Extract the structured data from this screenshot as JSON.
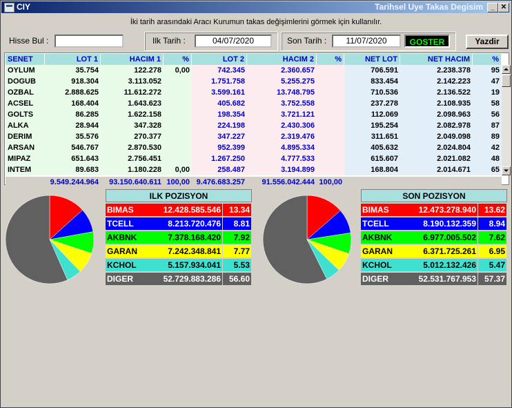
{
  "window": {
    "title": "CIY",
    "title_right": "Tarihsel Uye Takas Degisim"
  },
  "info_text": "İki tarih arasındaki  Aracı Kurumun takas değişimlerini görmek için kullanılır.",
  "form": {
    "hisse_label": "Hisse Bul :",
    "hisse_value": "",
    "ilk_label": "Ilk Tarih :",
    "ilk_value": "04/07/2020",
    "son_label": "Son Tarih :",
    "son_value": "11/07/2020",
    "goster_label": "GOSTER",
    "yazdir_label": "Yazdir"
  },
  "table": {
    "headers": [
      "SENET",
      "LOT 1",
      "HACIM 1",
      "%",
      "LOT 2",
      "HACIM 2",
      "%",
      "NET LOT",
      "NET HACIM",
      "%"
    ],
    "rows": [
      [
        "OYLUM",
        "35.754",
        "122.278",
        "0,00",
        "742.345",
        "2.360.657",
        "",
        "706.591",
        "2.238.378",
        "95"
      ],
      [
        "DOGUB",
        "918.304",
        "3.113.052",
        "",
        "1.751.758",
        "5.255.275",
        "",
        "833.454",
        "2.142.223",
        "47"
      ],
      [
        "OZBAL",
        "2.888.625",
        "11.612.272",
        "",
        "3.599.161",
        "13.748.795",
        "",
        "710.536",
        "2.136.522",
        "19"
      ],
      [
        "ACSEL",
        "168.404",
        "1.643.623",
        "",
        "405.682",
        "3.752.558",
        "",
        "237.278",
        "2.108.935",
        "58"
      ],
      [
        "GOLTS",
        "86.285",
        "1.622.158",
        "",
        "198.354",
        "3.721.121",
        "",
        "112.069",
        "2.098.963",
        "56"
      ],
      [
        "ALKA",
        "28.944",
        "347.328",
        "",
        "224.198",
        "2.430.306",
        "",
        "195.254",
        "2.082.978",
        "87"
      ],
      [
        "DERIM",
        "35.576",
        "270.377",
        "",
        "347.227",
        "2.319.476",
        "",
        "311.651",
        "2.049.098",
        "89"
      ],
      [
        "ARSAN",
        "546.767",
        "2.870.530",
        "",
        "952.399",
        "4.895.334",
        "",
        "405.632",
        "2.024.804",
        "42"
      ],
      [
        "MIPAZ",
        "651.643",
        "2.756.451",
        "",
        "1.267.250",
        "4.777.533",
        "",
        "615.607",
        "2.021.082",
        "48"
      ],
      [
        "INTEM",
        "89.683",
        "1.180.228",
        "0,00",
        "258.487",
        "3.194.899",
        "",
        "168.804",
        "2.014.671",
        "65"
      ]
    ],
    "totals": [
      "",
      "9.549.244.964",
      "93.150.640.611",
      "100,00",
      "9.476.683.257",
      "91.556.042.444",
      "100,00",
      "",
      "",
      ""
    ]
  },
  "ilk_pozisyon": {
    "title": "ILK POZISYON",
    "rows": [
      {
        "name": "BIMAS",
        "value": "12.428.585.546",
        "pct": "13.34",
        "share": 13.34,
        "bg": "#ff0000",
        "fg": "#ffffff"
      },
      {
        "name": "TCELL",
        "value": "8.213.720.476",
        "pct": "8.81",
        "share": 8.81,
        "bg": "#0000ff",
        "fg": "#ffffff"
      },
      {
        "name": "AKBNK",
        "value": "7.378.168.420",
        "pct": "7.92",
        "share": 7.92,
        "bg": "#00ff00",
        "fg": "#000000"
      },
      {
        "name": "GARAN",
        "value": "7.242.348.841",
        "pct": "7.77",
        "share": 7.77,
        "bg": "#ffff00",
        "fg": "#000000"
      },
      {
        "name": "KCHOL",
        "value": "5.157.934.041",
        "pct": "5.53",
        "share": 5.53,
        "bg": "#40e0d0",
        "fg": "#000000"
      },
      {
        "name": "DIGER",
        "value": "52.729.883.286",
        "pct": "56.60",
        "share": 56.6,
        "bg": "#606060",
        "fg": "#ffffff"
      }
    ]
  },
  "son_pozisyon": {
    "title": "SON POZISYON",
    "rows": [
      {
        "name": "BIMAS",
        "value": "12.473.278.940",
        "pct": "13.62",
        "share": 13.62,
        "bg": "#ff0000",
        "fg": "#ffffff"
      },
      {
        "name": "TCELL",
        "value": "8.190.132.359",
        "pct": "8.94",
        "share": 8.94,
        "bg": "#0000ff",
        "fg": "#ffffff"
      },
      {
        "name": "AKBNK",
        "value": "6.977.005.502",
        "pct": "7.62",
        "share": 7.62,
        "bg": "#00ff00",
        "fg": "#000000"
      },
      {
        "name": "GARAN",
        "value": "6.371.725.261",
        "pct": "6.95",
        "share": 6.95,
        "bg": "#ffff00",
        "fg": "#000000"
      },
      {
        "name": "KCHOL",
        "value": "5.012.132.426",
        "pct": "5.47",
        "share": 5.47,
        "bg": "#40e0d0",
        "fg": "#000000"
      },
      {
        "name": "DIGER",
        "value": "52.531.767.953",
        "pct": "57.37",
        "share": 57.37,
        "bg": "#606060",
        "fg": "#ffffff"
      }
    ]
  },
  "colors": {
    "title_bar": "#0a246a",
    "header_bg": "#a8e0e0",
    "col_green": "#e8fae8",
    "col_pink": "#fcecf0",
    "col_blue": "#e2eef8",
    "lot2_text": "#0000c0"
  }
}
